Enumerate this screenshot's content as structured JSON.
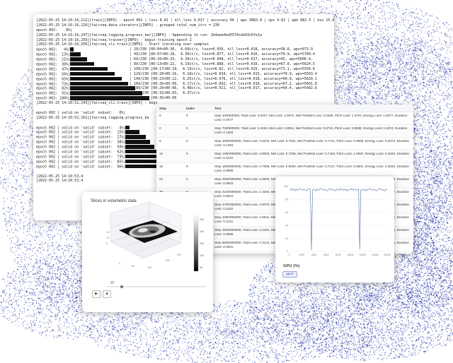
{
  "terminal": {
    "lines": [
      {
        "text": "[2022-05-25 14:10:16,212][train][INFO] - epoch 001 | loss 0.92 | nll_loss 0.017 | accuracy 66 | wps 3883.8 | ups 4.82 | wpb 882.5 | bsz 15.0"
      },
      {
        "text": "[2022-05-25 14:10:16,220][fairseq.data.iterators][INFO] - grouped total_num_itrs = 230"
      },
      {
        "text": "epoch 002:    0%|"
      },
      {
        "text": "[2022-05-25 14:10:16,247][fairseq.logging.progress_bar][INFO] - Appending to run: 2b4aee4ed5574cde93c6fe1a"
      },
      {
        "text": "[2022-05-25 14:10:16,256][fairseq.trainer][INFO] - begin training epoch 2"
      },
      {
        "text": "[2022-05-25 14:10:16,256][fairseq_cli.train][INFO] - Start iterating over samples"
      },
      {
        "text": "epoch 002:   4%|",
        "bar": 0.04,
        "rest": "| 29/230 [00:04<00:30,  6.64it/s, loss=0.956, nll_loss=0.018, accuracy=58.8, wps=973.9"
      },
      {
        "text": "epoch 002:  13%|",
        "bar": 0.13,
        "rest": "| 49/230 [00:07<00:28,  6.30it/s, loss=0.877, nll_loss=0.016, accuracy=70.9, wps=5709.4"
      },
      {
        "text": "epoch 002:  21%|",
        "bar": 0.21,
        "rest": "| 69/230 [00:10<00:25,  6.39it/s, loss=0.908, nll_loss=0.017, accuracy=65, wps=5606.4,"
      },
      {
        "text": "epoch 002:  30%|",
        "bar": 0.3,
        "rest": "| 89/230 [00:13<00:22,  6.19it/s, loss=0.888, nll_loss=0.016, accuracy=67.8, wps=5624.5"
      },
      {
        "text": "epoch 002:  47%|",
        "bar": 0.47,
        "rest": "| 109/230 [00:17<00:19,  6.19it/s, loss=0.82, nll_loss=0.015, accuracy=73.1, wps=5554.6"
      },
      {
        "text": "epoch 002:  56%|",
        "bar": 0.56,
        "rest": "| 129/230 [00:20<00:16,  6.18it/s, loss=0.834, nll_loss=0.015, accuracy=70.9, wps=5563.4"
      },
      {
        "text": "epoch 002:  65%|",
        "bar": 0.65,
        "rest": "| 149/230 [00:23<00:12,  6.25it/s, loss=0.976, nll_loss=0.018, accuracy=60.9, wps=5620.1"
      },
      {
        "text": "epoch 002:  73%|",
        "bar": 0.73,
        "rest": "| 169/230 [00:26<00:09,  6.17it/s, loss=0.892, nll_loss=0.016, accuracy=67.2, wps=5601.8"
      },
      {
        "text": "epoch 002:  82%|",
        "bar": 0.82,
        "rest": "| 189/230 [00:29<00:06,  6.48it/s, loss=0.911, nll_loss=0.017, accuracy=64.4, wps=5402.6"
      },
      {
        "text": "epoch 002:  91%|",
        "bar": 0.91,
        "rest": "| 209/230 [00:32<00:03,  6.37it/s"
      },
      {
        "text": "epoch 002: 100%|",
        "bar": 1.0,
        "rest": "| 229/230 [00:35<00:00"
      },
      {
        "text": "[2022-05-25 14:10:52,243][fairseq_cli.train][INFO] - begi"
      },
      {
        "text": ""
      },
      {
        "text": "epoch 002 | valid on 'valid' subset:   0%|"
      },
      {
        "text": "[2022-05-25 14:10:52,261][fairseq.logging.progress_ba"
      },
      {
        "text": ""
      },
      {
        "text": "epoch 002 | valid on 'valid' subset:   4%|",
        "bar": 0.1,
        "restOffset": 1
      },
      {
        "text": "epoch 002 | valid on 'valid' subset:  15%|",
        "bar": 0.34,
        "restOffset": 1
      },
      {
        "text": "epoch 002 | valid on 'valid' subset:  27%|",
        "bar": 0.5,
        "restOffset": 1
      },
      {
        "text": "epoch 002 | valid on 'valid' subset:  38%|",
        "bar": 0.6,
        "restOffset": 1
      },
      {
        "text": "epoch 002 | valid on 'valid' subset:  50%|",
        "bar": 0.7,
        "restOffset": 1
      },
      {
        "text": "epoch 002 | valid on 'valid' subset:  62%|",
        "bar": 0.78,
        "restOffset": 1
      },
      {
        "text": "epoch 002 | valid on 'valid' subset:  73%|",
        "bar": 0.85,
        "restOffset": 1
      },
      {
        "text": "epoch 002 | valid on 'valid' subset:  85%|",
        "bar": 0.92,
        "restOffset": 1
      },
      {
        "text": "epoch 002 | valid on 'valid' subset:  96%|",
        "bar": 1.0,
        "restOffset": 1
      },
      {
        "text": ""
      },
      {
        "text": "[2022-05-25 14:10:53,4"
      },
      {
        "text": "[2022-05-25 14:10:53,4"
      }
    ]
  },
  "table": {
    "headers": [
      "Step",
      "Index",
      "Text"
    ],
    "rows": [
      [
        "0",
        "0",
        "Step 100/900000, Total Loss: 3.0027, Mel Loss: 1.5572, Mel PostNet Loss: 3.0256, Pitch Loss: 1.3704, Energy Loss: 1.6077, Duration Loss: 0.4077"
      ],
      [
        "0",
        "0",
        "Step 700/900000, Total Loss: 3.2233, Mel Loss: 0.8061, Mel PostNet Loss: 0.8721, Pitch Loss: 0.9965, Energy Loss: 0.4074, Duration Loss: 0.1393"
      ],
      [
        "6",
        "0",
        "Step 1000/900000, Total Loss: 2.8233, Mel Loss: 0.7061, Mel PostNet Loss: 0.7721, Pitch Loss: 0.8965, Energy Loss: 0.4074, Duration Loss: 0.1293"
      ],
      [
        "12",
        "0",
        "Step 1300/900000, Total Loss: 2.8002, Mel Loss: 0.7206, Mel PostNet Loss: 0.7425, Pitch Loss: 1.0087, Energy Loss: 0.3345, Duration Loss: 0.1134"
      ],
      [
        "18",
        "0",
        "Step 1800/900000, Total Loss: 2.7066, Mel Loss: 0.6830, Mel PostNet Loss: 0.7137, Pitch Loss: 0.9301, Energy Loss: 0.3810, Duration Loss: 0.0990"
      ],
      [
        "24",
        "0",
        "Step 2500/900000, Total Loss: 2.6002, Mel Loss: 0.6619, Mel PostNet Loss: 0.6867, Pitch Loss: 0.9628, Energy Loss: 0.2948, Duration Loss: 0.0943"
      ],
      [
        "30",
        "0",
        "Step 3100/900000, Total Loss: 2.3284, Mel Loss: 0.6448, Mel PostNet Loss: 0.6581, Pitch Loss: 0.9057, Energy Loss: 0.3167, Duration Loss: 0.0944"
      ],
      [
        "36",
        "0",
        "Step 3700/900000, Total Loss: 2.8070, Mel Loss: 0.5987, Mel PostNet Loss: 0.6270, Pitch Loss: 0.8731, Energy Loss: 0.2677, Duration Loss: 0.1193"
      ],
      [
        "",
        "",
        "Step 4300/900000, Total Loss: 2.6941, Mel Loss: 0.5793, Mel PostNet Loss: 0.6010, Pitch Loss: 0.8512, Energy Loss: 0.3426, Duration Loss: 0.1134"
      ],
      [
        "",
        "",
        "Step 4900/900000, Total Loss: 2.4491, Mel Loss: 0.5612, Mel PostNet Loss: 0.5874, Pitch Loss: 0.8134, Energy Loss: 0.2886, Duration Loss: 0.0885"
      ],
      [
        "",
        "",
        "Step 5500/900000, Total Loss: 2.3121, Mel Loss: 0.5498, Mel PostNet Loss: 0.5723, Pitch Loss: 0.7970, Energy Loss: 0.2424, Duration Loss: 0.0931"
      ],
      [
        "",
        "",
        "Step 6100/900000, Total Loss: 2.0028, Mel Loss: 0.5311, Mel PostNet Loss: 0.5586, Pitch Loss: 0.7725, Energy Loss: 0.2467, Duration Loss: 0.0877"
      ],
      [
        "",
        "",
        "Step 6700/900000, Total Loss: 1.9796, Mel Loss: 0.5184, Mel PostNet Loss: 0.5419, Pitch Loss: 0.7417, Energy Loss: 0.2417, Duration Loss: 0.0859"
      ]
    ]
  },
  "plot3d": {
    "title": "Slices in volumetric data",
    "play_label": "▶",
    "pause_label": "■",
    "slider_value": "37",
    "colorbar_ticks": [
      "250",
      "200",
      "150",
      "100",
      "50"
    ]
  },
  "gpu": {
    "title": "GPU (%)",
    "button_label": "gpu0",
    "chart_data": {
      "type": "line",
      "x_ticks": [
        "0",
        "2000",
        "4000",
        "6000",
        "8000",
        "10000",
        "12000",
        "14000",
        "16000"
      ],
      "y_ticks": [
        "100",
        "80",
        "60",
        "40",
        "20",
        "0"
      ],
      "ylim": [
        0,
        100
      ],
      "series": [
        {
          "values": [
            95,
            96,
            94,
            97,
            95,
            93,
            96,
            94,
            95,
            97,
            96,
            95,
            94,
            96,
            95,
            93,
            94,
            96,
            97,
            95,
            2,
            94,
            96,
            95,
            93,
            96,
            94,
            95,
            97,
            96,
            95,
            94,
            96,
            95,
            93,
            94,
            96,
            97,
            95,
            96,
            94,
            95,
            93,
            96,
            95,
            94,
            97,
            95,
            96,
            94,
            95,
            96,
            93,
            95,
            94,
            96,
            95,
            97,
            94,
            95,
            96,
            94,
            95,
            96,
            3,
            95,
            94,
            96,
            95,
            93,
            96,
            94,
            95,
            97,
            96,
            95,
            94,
            96,
            95,
            93,
            94,
            96,
            97,
            95,
            96,
            94,
            95,
            93,
            96,
            95
          ]
        }
      ]
    }
  },
  "colors": {
    "dither": "#1f2f8c",
    "bar": "#111111"
  }
}
